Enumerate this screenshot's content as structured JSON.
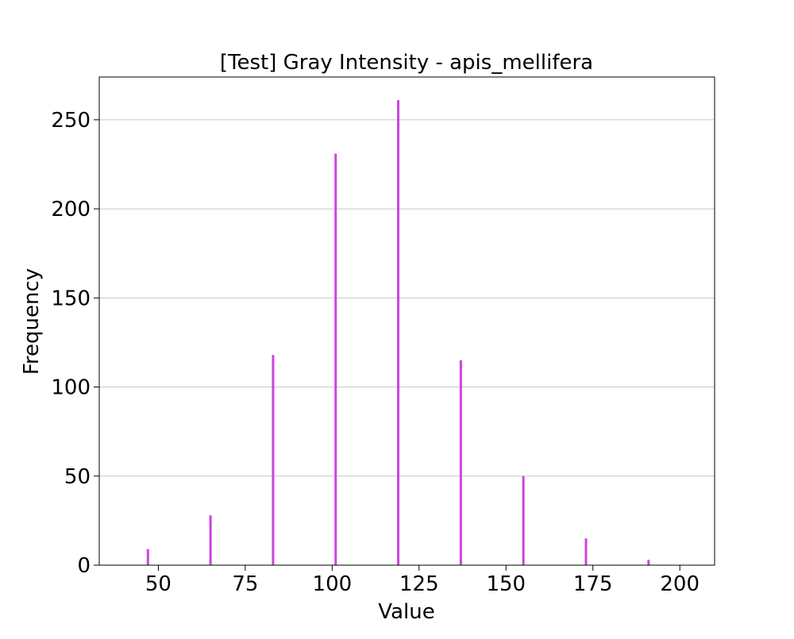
{
  "chart_data": {
    "type": "bar",
    "title": "[Test] Gray Intensity - apis_mellifera",
    "xlabel": "Value",
    "ylabel": "Frequency",
    "xlim": [
      33,
      210
    ],
    "ylim": [
      0,
      274
    ],
    "xticks": [
      50,
      75,
      100,
      125,
      150,
      175,
      200
    ],
    "yticks": [
      0,
      50,
      100,
      150,
      200,
      250
    ],
    "grid": "y",
    "bar_color": "#cc44dd",
    "series": [
      {
        "x": [
          47,
          65,
          83,
          101,
          119,
          137,
          155,
          173,
          191
        ],
        "values": [
          9,
          28,
          118,
          231,
          261,
          115,
          50,
          15,
          3
        ]
      }
    ]
  }
}
